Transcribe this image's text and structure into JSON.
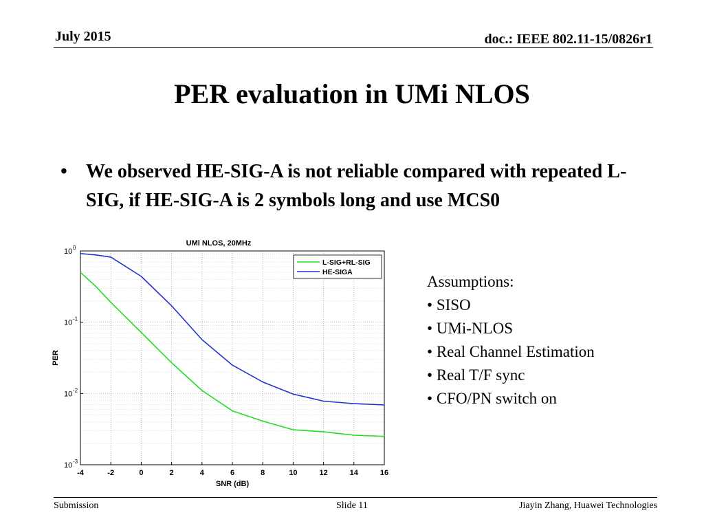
{
  "header": {
    "date": "July 2015",
    "doc": "doc.: IEEE 802.11-15/0826r1"
  },
  "title": "PER evaluation in UMi NLOS",
  "bullet": "We observed HE-SIG-A is not reliable compared with repeated L-SIG, if HE-SIG-A is 2 symbols long and use MCS0",
  "assumptions": {
    "heading": "Assumptions:",
    "items": [
      "SISO",
      "UMi-NLOS",
      "Real Channel Estimation",
      "Real T/F sync",
      "CFO/PN switch on"
    ]
  },
  "footer": {
    "left": "Submission",
    "center": "Slide 11",
    "right": "Jiayin Zhang, Huawei Technologies"
  },
  "chart_data": {
    "type": "line",
    "title": "UMi NLOS, 20MHz",
    "xlabel": "SNR (dB)",
    "ylabel": "PER",
    "xlim": [
      -4,
      16
    ],
    "ylim": [
      0.001,
      1
    ],
    "yscale": "log",
    "xticks": [
      -4,
      -2,
      0,
      2,
      4,
      6,
      8,
      10,
      12,
      14,
      16
    ],
    "yticks": [
      {
        "value": 1,
        "label": "10",
        "exp": "0"
      },
      {
        "value": 0.1,
        "label": "10",
        "exp": "-1"
      },
      {
        "value": 0.01,
        "label": "10",
        "exp": "-2"
      },
      {
        "value": 0.001,
        "label": "10",
        "exp": "-3"
      }
    ],
    "grid": true,
    "legend_position": "top-right",
    "x": [
      -4,
      -3,
      -2,
      0,
      2,
      4,
      6,
      8,
      10,
      12,
      14,
      16
    ],
    "series": [
      {
        "name": "L-SIG+RL-SIG",
        "color": "#22dd22",
        "values": [
          0.5,
          0.32,
          0.19,
          0.072,
          0.027,
          0.011,
          0.0057,
          0.0041,
          0.0031,
          0.0029,
          0.0026,
          0.0025
        ]
      },
      {
        "name": "HE-SIGA",
        "color": "#2233cc",
        "values": [
          0.92,
          0.88,
          0.82,
          0.44,
          0.17,
          0.057,
          0.025,
          0.0145,
          0.0098,
          0.0078,
          0.0072,
          0.0069
        ]
      }
    ]
  }
}
